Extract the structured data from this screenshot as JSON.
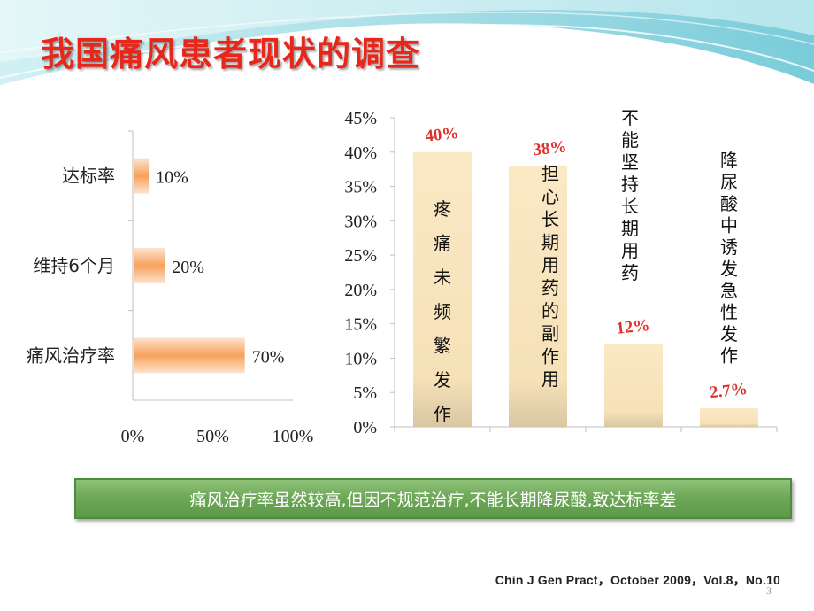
{
  "slide": {
    "title": "我国痛风患者现状的调查",
    "conclusion": "痛风治疗率虽然较高,但因不规范治疗,不能长期降尿酸,致达标率差",
    "citation": "Chin J Gen Pract，October 2009，Vol.8，No.10",
    "page_number": "3"
  },
  "colors": {
    "title": "#e8261a",
    "bar_fill": "#fbe9c5",
    "bar_dark": "#d9c7a3",
    "highlight_label": "#e0302a",
    "conclusion_bg": "#6ea858",
    "orange_bar": "#f6a25c"
  },
  "chart_data": [
    {
      "type": "bar",
      "orientation": "horizontal",
      "categories": [
        "达标率",
        "维持6个月",
        "痛风治疗率"
      ],
      "values": [
        10,
        20,
        70
      ],
      "value_labels": [
        "10%",
        "20%",
        "70%"
      ],
      "xlim": [
        0,
        100
      ],
      "x_ticks": [
        "0%",
        "50%",
        "100%"
      ]
    },
    {
      "type": "bar",
      "orientation": "vertical",
      "categories": [
        "疼痛未频繁发作",
        "担心长期用药的副作用",
        "不能坚持长期用药",
        "降尿酸中诱发急性发作"
      ],
      "values": [
        40,
        38,
        12,
        2.7
      ],
      "value_labels": [
        "40%",
        "38%",
        "12%",
        "2.7%"
      ],
      "ylim": [
        0,
        45
      ],
      "y_ticks": [
        "0%",
        "5%",
        "10%",
        "15%",
        "20%",
        "25%",
        "30%",
        "35%",
        "40%",
        "45%"
      ]
    }
  ]
}
